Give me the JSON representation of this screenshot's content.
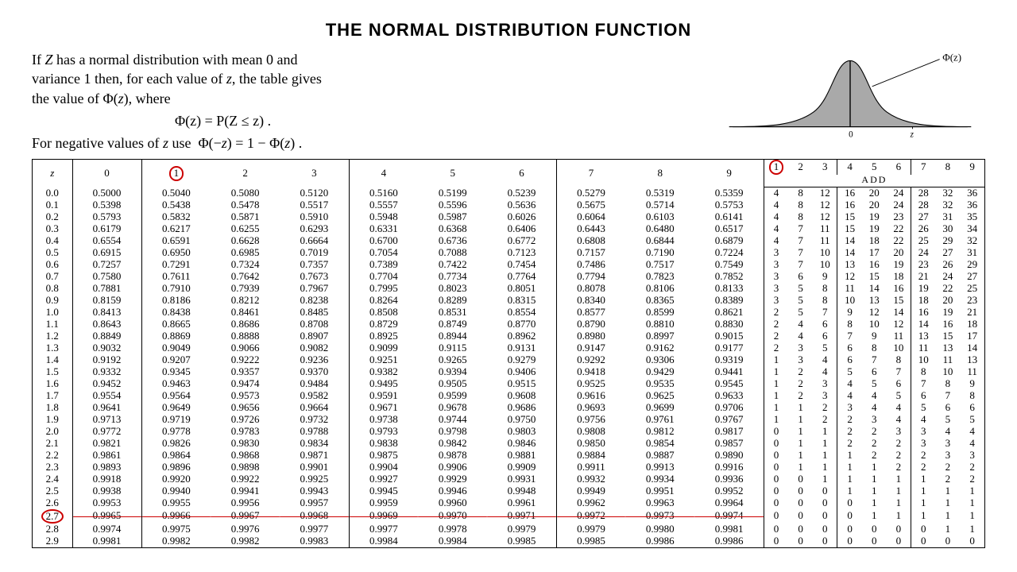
{
  "title": "THE NORMAL DISTRIBUTION FUNCTION",
  "intro": {
    "line1": "If Z has a normal distribution with mean 0 and variance 1 then, for each value of z, the table gives the value of Φ(z), where",
    "formula1": "Φ(z) = P(Z ≤ z) .",
    "line2": "For negative values of z use  Φ(−z) = 1 − Φ(z) .",
    "phi_label": "Φ(z)"
  },
  "headers": {
    "z": "z",
    "main": [
      "0",
      "1",
      "2",
      "3",
      "4",
      "5",
      "6",
      "7",
      "8",
      "9"
    ],
    "add_title": "ADD",
    "add": [
      "1",
      "2",
      "3",
      "4",
      "5",
      "6",
      "7",
      "8",
      "9"
    ]
  },
  "circled_main_col": 1,
  "circled_add_col": 0,
  "circled_row_z": "2.7",
  "strike_row_z": "2.7",
  "rows": [
    {
      "z": "0.0",
      "v": [
        "0.5000",
        "0.5040",
        "0.5080",
        "0.5120",
        "0.5160",
        "0.5199",
        "0.5239",
        "0.5279",
        "0.5319",
        "0.5359"
      ],
      "a": [
        "4",
        "8",
        "12",
        "16",
        "20",
        "24",
        "28",
        "32",
        "36"
      ]
    },
    {
      "z": "0.1",
      "v": [
        "0.5398",
        "0.5438",
        "0.5478",
        "0.5517",
        "0.5557",
        "0.5596",
        "0.5636",
        "0.5675",
        "0.5714",
        "0.5753"
      ],
      "a": [
        "4",
        "8",
        "12",
        "16",
        "20",
        "24",
        "28",
        "32",
        "36"
      ]
    },
    {
      "z": "0.2",
      "v": [
        "0.5793",
        "0.5832",
        "0.5871",
        "0.5910",
        "0.5948",
        "0.5987",
        "0.6026",
        "0.6064",
        "0.6103",
        "0.6141"
      ],
      "a": [
        "4",
        "8",
        "12",
        "15",
        "19",
        "23",
        "27",
        "31",
        "35"
      ]
    },
    {
      "z": "0.3",
      "v": [
        "0.6179",
        "0.6217",
        "0.6255",
        "0.6293",
        "0.6331",
        "0.6368",
        "0.6406",
        "0.6443",
        "0.6480",
        "0.6517"
      ],
      "a": [
        "4",
        "7",
        "11",
        "15",
        "19",
        "22",
        "26",
        "30",
        "34"
      ]
    },
    {
      "z": "0.4",
      "v": [
        "0.6554",
        "0.6591",
        "0.6628",
        "0.6664",
        "0.6700",
        "0.6736",
        "0.6772",
        "0.6808",
        "0.6844",
        "0.6879"
      ],
      "a": [
        "4",
        "7",
        "11",
        "14",
        "18",
        "22",
        "25",
        "29",
        "32"
      ]
    },
    {
      "z": "0.5",
      "v": [
        "0.6915",
        "0.6950",
        "0.6985",
        "0.7019",
        "0.7054",
        "0.7088",
        "0.7123",
        "0.7157",
        "0.7190",
        "0.7224"
      ],
      "a": [
        "3",
        "7",
        "10",
        "14",
        "17",
        "20",
        "24",
        "27",
        "31"
      ]
    },
    {
      "z": "0.6",
      "v": [
        "0.7257",
        "0.7291",
        "0.7324",
        "0.7357",
        "0.7389",
        "0.7422",
        "0.7454",
        "0.7486",
        "0.7517",
        "0.7549"
      ],
      "a": [
        "3",
        "7",
        "10",
        "13",
        "16",
        "19",
        "23",
        "26",
        "29"
      ]
    },
    {
      "z": "0.7",
      "v": [
        "0.7580",
        "0.7611",
        "0.7642",
        "0.7673",
        "0.7704",
        "0.7734",
        "0.7764",
        "0.7794",
        "0.7823",
        "0.7852"
      ],
      "a": [
        "3",
        "6",
        "9",
        "12",
        "15",
        "18",
        "21",
        "24",
        "27"
      ]
    },
    {
      "z": "0.8",
      "v": [
        "0.7881",
        "0.7910",
        "0.7939",
        "0.7967",
        "0.7995",
        "0.8023",
        "0.8051",
        "0.8078",
        "0.8106",
        "0.8133"
      ],
      "a": [
        "3",
        "5",
        "8",
        "11",
        "14",
        "16",
        "19",
        "22",
        "25"
      ]
    },
    {
      "z": "0.9",
      "v": [
        "0.8159",
        "0.8186",
        "0.8212",
        "0.8238",
        "0.8264",
        "0.8289",
        "0.8315",
        "0.8340",
        "0.8365",
        "0.8389"
      ],
      "a": [
        "3",
        "5",
        "8",
        "10",
        "13",
        "15",
        "18",
        "20",
        "23"
      ]
    },
    {
      "z": "1.0",
      "v": [
        "0.8413",
        "0.8438",
        "0.8461",
        "0.8485",
        "0.8508",
        "0.8531",
        "0.8554",
        "0.8577",
        "0.8599",
        "0.8621"
      ],
      "a": [
        "2",
        "5",
        "7",
        "9",
        "12",
        "14",
        "16",
        "19",
        "21"
      ]
    },
    {
      "z": "1.1",
      "v": [
        "0.8643",
        "0.8665",
        "0.8686",
        "0.8708",
        "0.8729",
        "0.8749",
        "0.8770",
        "0.8790",
        "0.8810",
        "0.8830"
      ],
      "a": [
        "2",
        "4",
        "6",
        "8",
        "10",
        "12",
        "14",
        "16",
        "18"
      ]
    },
    {
      "z": "1.2",
      "v": [
        "0.8849",
        "0.8869",
        "0.8888",
        "0.8907",
        "0.8925",
        "0.8944",
        "0.8962",
        "0.8980",
        "0.8997",
        "0.9015"
      ],
      "a": [
        "2",
        "4",
        "6",
        "7",
        "9",
        "11",
        "13",
        "15",
        "17"
      ]
    },
    {
      "z": "1.3",
      "v": [
        "0.9032",
        "0.9049",
        "0.9066",
        "0.9082",
        "0.9099",
        "0.9115",
        "0.9131",
        "0.9147",
        "0.9162",
        "0.9177"
      ],
      "a": [
        "2",
        "3",
        "5",
        "6",
        "8",
        "10",
        "11",
        "13",
        "14"
      ]
    },
    {
      "z": "1.4",
      "v": [
        "0.9192",
        "0.9207",
        "0.9222",
        "0.9236",
        "0.9251",
        "0.9265",
        "0.9279",
        "0.9292",
        "0.9306",
        "0.9319"
      ],
      "a": [
        "1",
        "3",
        "4",
        "6",
        "7",
        "8",
        "10",
        "11",
        "13"
      ]
    },
    {
      "z": "1.5",
      "v": [
        "0.9332",
        "0.9345",
        "0.9357",
        "0.9370",
        "0.9382",
        "0.9394",
        "0.9406",
        "0.9418",
        "0.9429",
        "0.9441"
      ],
      "a": [
        "1",
        "2",
        "4",
        "5",
        "6",
        "7",
        "8",
        "10",
        "11"
      ]
    },
    {
      "z": "1.6",
      "v": [
        "0.9452",
        "0.9463",
        "0.9474",
        "0.9484",
        "0.9495",
        "0.9505",
        "0.9515",
        "0.9525",
        "0.9535",
        "0.9545"
      ],
      "a": [
        "1",
        "2",
        "3",
        "4",
        "5",
        "6",
        "7",
        "8",
        "9"
      ]
    },
    {
      "z": "1.7",
      "v": [
        "0.9554",
        "0.9564",
        "0.9573",
        "0.9582",
        "0.9591",
        "0.9599",
        "0.9608",
        "0.9616",
        "0.9625",
        "0.9633"
      ],
      "a": [
        "1",
        "2",
        "3",
        "4",
        "4",
        "5",
        "6",
        "7",
        "8"
      ]
    },
    {
      "z": "1.8",
      "v": [
        "0.9641",
        "0.9649",
        "0.9656",
        "0.9664",
        "0.9671",
        "0.9678",
        "0.9686",
        "0.9693",
        "0.9699",
        "0.9706"
      ],
      "a": [
        "1",
        "1",
        "2",
        "3",
        "4",
        "4",
        "5",
        "6",
        "6"
      ]
    },
    {
      "z": "1.9",
      "v": [
        "0.9713",
        "0.9719",
        "0.9726",
        "0.9732",
        "0.9738",
        "0.9744",
        "0.9750",
        "0.9756",
        "0.9761",
        "0.9767"
      ],
      "a": [
        "1",
        "1",
        "2",
        "2",
        "3",
        "4",
        "4",
        "5",
        "5"
      ]
    },
    {
      "z": "2.0",
      "v": [
        "0.9772",
        "0.9778",
        "0.9783",
        "0.9788",
        "0.9793",
        "0.9798",
        "0.9803",
        "0.9808",
        "0.9812",
        "0.9817"
      ],
      "a": [
        "0",
        "1",
        "1",
        "2",
        "2",
        "3",
        "3",
        "4",
        "4"
      ]
    },
    {
      "z": "2.1",
      "v": [
        "0.9821",
        "0.9826",
        "0.9830",
        "0.9834",
        "0.9838",
        "0.9842",
        "0.9846",
        "0.9850",
        "0.9854",
        "0.9857"
      ],
      "a": [
        "0",
        "1",
        "1",
        "2",
        "2",
        "2",
        "3",
        "3",
        "4"
      ]
    },
    {
      "z": "2.2",
      "v": [
        "0.9861",
        "0.9864",
        "0.9868",
        "0.9871",
        "0.9875",
        "0.9878",
        "0.9881",
        "0.9884",
        "0.9887",
        "0.9890"
      ],
      "a": [
        "0",
        "1",
        "1",
        "1",
        "2",
        "2",
        "2",
        "3",
        "3"
      ]
    },
    {
      "z": "2.3",
      "v": [
        "0.9893",
        "0.9896",
        "0.9898",
        "0.9901",
        "0.9904",
        "0.9906",
        "0.9909",
        "0.9911",
        "0.9913",
        "0.9916"
      ],
      "a": [
        "0",
        "1",
        "1",
        "1",
        "1",
        "2",
        "2",
        "2",
        "2"
      ]
    },
    {
      "z": "2.4",
      "v": [
        "0.9918",
        "0.9920",
        "0.9922",
        "0.9925",
        "0.9927",
        "0.9929",
        "0.9931",
        "0.9932",
        "0.9934",
        "0.9936"
      ],
      "a": [
        "0",
        "0",
        "1",
        "1",
        "1",
        "1",
        "1",
        "2",
        "2"
      ]
    },
    {
      "z": "2.5",
      "v": [
        "0.9938",
        "0.9940",
        "0.9941",
        "0.9943",
        "0.9945",
        "0.9946",
        "0.9948",
        "0.9949",
        "0.9951",
        "0.9952"
      ],
      "a": [
        "0",
        "0",
        "0",
        "1",
        "1",
        "1",
        "1",
        "1",
        "1"
      ]
    },
    {
      "z": "2.6",
      "v": [
        "0.9953",
        "0.9955",
        "0.9956",
        "0.9957",
        "0.9959",
        "0.9960",
        "0.9961",
        "0.9962",
        "0.9963",
        "0.9964"
      ],
      "a": [
        "0",
        "0",
        "0",
        "0",
        "1",
        "1",
        "1",
        "1",
        "1"
      ]
    },
    {
      "z": "2.7",
      "v": [
        "0.9965",
        "0.9966",
        "0.9967",
        "0.9968",
        "0.9969",
        "0.9970",
        "0.9971",
        "0.9972",
        "0.9973",
        "0.9974"
      ],
      "a": [
        "0",
        "0",
        "0",
        "0",
        "1",
        "1",
        "1",
        "1",
        "1"
      ]
    },
    {
      "z": "2.8",
      "v": [
        "0.9974",
        "0.9975",
        "0.9976",
        "0.9977",
        "0.9977",
        "0.9978",
        "0.9979",
        "0.9979",
        "0.9980",
        "0.9981"
      ],
      "a": [
        "0",
        "0",
        "0",
        "0",
        "0",
        "0",
        "0",
        "1",
        "1"
      ]
    },
    {
      "z": "2.9",
      "v": [
        "0.9981",
        "0.9982",
        "0.9982",
        "0.9983",
        "0.9984",
        "0.9984",
        "0.9985",
        "0.9985",
        "0.9986",
        "0.9986"
      ],
      "a": [
        "0",
        "0",
        "0",
        "0",
        "0",
        "0",
        "0",
        "0",
        "0"
      ]
    }
  ],
  "chart": {
    "bell_fill": "#a9a9a9",
    "bell_stroke": "#000",
    "axis_color": "#000"
  }
}
